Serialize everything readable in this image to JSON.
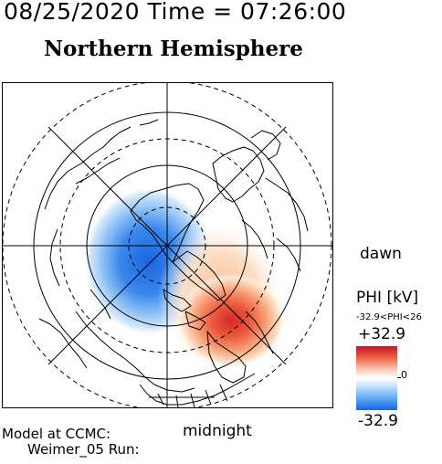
{
  "header": {
    "datetime": "08/25/2020 Time = 07:26:00",
    "hemisphere_title": "Northern Hemisphere"
  },
  "map": {
    "orientation_labels": {
      "dawn": "dawn",
      "midnight": "midnight"
    },
    "potential_pattern": {
      "negative_cell": "dusk / pre-midnight sector",
      "positive_cell": "dawn / post-midnight sector"
    }
  },
  "colorbar": {
    "title": "PHI [kV]",
    "range_text": "-32.9<PHI<26",
    "max": "+32.9",
    "zero": "0",
    "min": "-32.9",
    "colors": {
      "max": "#c0142a",
      "zero": "#ffffff",
      "min": "#1a66e0"
    }
  },
  "footer": {
    "line1": "Model at CCMC:",
    "line2": "Weimer_05 Run:"
  }
}
